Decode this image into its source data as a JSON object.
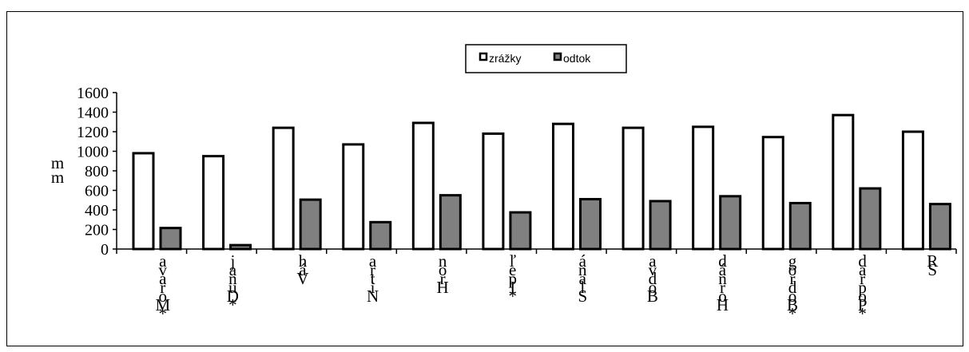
{
  "chart_data": {
    "type": "bar",
    "title": "",
    "xlabel": "",
    "ylabel": "mm",
    "ylim": [
      0,
      1600
    ],
    "yticks": [
      0,
      200,
      400,
      600,
      800,
      1000,
      1200,
      1400,
      1600
    ],
    "legend_position": "top-center",
    "categories": [
      "*Morava",
      "*Dunaj",
      "Váh",
      "Nitra",
      "Hron",
      "*Ipeľ",
      "Slaná",
      "Bodva",
      "Hornád",
      "*Bodrog",
      "*Poprad",
      "SR"
    ],
    "series": [
      {
        "name": "zrážky",
        "color": "#ffffff",
        "values": [
          980,
          950,
          1240,
          1070,
          1290,
          1180,
          1280,
          1240,
          1250,
          1145,
          1370,
          1200
        ]
      },
      {
        "name": "odtok",
        "color": "#808080",
        "values": [
          215,
          40,
          505,
          275,
          550,
          375,
          510,
          490,
          540,
          470,
          620,
          460
        ]
      }
    ]
  }
}
